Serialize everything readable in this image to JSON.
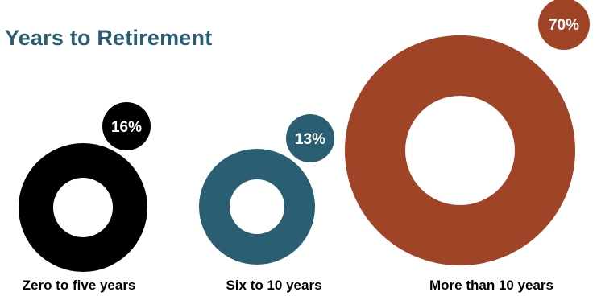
{
  "title": "Years to Retirement",
  "chart_data": {
    "type": "donut",
    "title": "Years to Retirement",
    "items": [
      {
        "category": "Zero to five years",
        "value": 16,
        "label": "16%",
        "color": "#000000"
      },
      {
        "category": "Six to 10 years",
        "value": 13,
        "label": "13%",
        "color": "#2a5f73"
      },
      {
        "category": "More than 10 years",
        "value": 70,
        "label": "70%",
        "color": "#a04428"
      }
    ]
  }
}
